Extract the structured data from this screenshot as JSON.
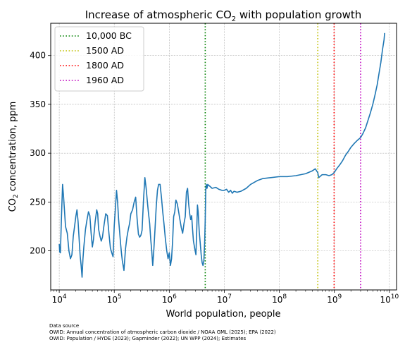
{
  "chart_data": {
    "type": "line",
    "title": {
      "main": "Increase of atmospheric CO",
      "sub": "2",
      "tail": " with population growth"
    },
    "xlabel": "World population, people",
    "ylabel": {
      "pre": "CO",
      "sub": "2",
      "post": " concentration, ppm"
    },
    "x_scale": "log",
    "xlim": [
      7000,
      13500000000
    ],
    "ylim": [
      160,
      433
    ],
    "grid": true,
    "x_ticks": [
      {
        "value": 10000,
        "base": "10",
        "exp": "4"
      },
      {
        "value": 100000,
        "base": "10",
        "exp": "5"
      },
      {
        "value": 1000000,
        "base": "10",
        "exp": "6"
      },
      {
        "value": 10000000,
        "base": "10",
        "exp": "7"
      },
      {
        "value": 100000000,
        "base": "10",
        "exp": "8"
      },
      {
        "value": 1000000000,
        "base": "10",
        "exp": "9"
      },
      {
        "value": 10000000000,
        "base": "10",
        "exp": "10"
      }
    ],
    "y_ticks": [
      200,
      250,
      300,
      350,
      400
    ],
    "legend": {
      "position": "top-left",
      "entries": [
        {
          "label": "10,000 BC",
          "color": "#008000"
        },
        {
          "label": "1500 AD",
          "color": "#bfbf00"
        },
        {
          "label": "1800 AD",
          "color": "#ff0000"
        },
        {
          "label": "1960 AD",
          "color": "#bf00bf"
        }
      ]
    },
    "vlines": [
      {
        "label": "10,000 BC",
        "x": 4500000,
        "color": "#008000"
      },
      {
        "label": "1500 AD",
        "x": 500000000,
        "color": "#bfbf00"
      },
      {
        "label": "1800 AD",
        "x": 990000000,
        "color": "#ff0000"
      },
      {
        "label": "1960 AD",
        "x": 3000000000,
        "color": "#bf00bf"
      }
    ],
    "series": [
      {
        "color": "#1f77b4",
        "points": [
          [
            10000,
            207
          ],
          [
            10200,
            199
          ],
          [
            10500,
            198
          ],
          [
            11000,
            236
          ],
          [
            11500,
            268
          ],
          [
            12000,
            255
          ],
          [
            12500,
            240
          ],
          [
            13000,
            225
          ],
          [
            14000,
            218
          ],
          [
            15000,
            200
          ],
          [
            16000,
            192
          ],
          [
            17000,
            196
          ],
          [
            18000,
            215
          ],
          [
            19000,
            225
          ],
          [
            20000,
            235
          ],
          [
            21000,
            242
          ],
          [
            22000,
            230
          ],
          [
            23000,
            212
          ],
          [
            24000,
            195
          ],
          [
            25000,
            185
          ],
          [
            26000,
            173
          ],
          [
            27000,
            192
          ],
          [
            28000,
            204
          ],
          [
            30000,
            222
          ],
          [
            32000,
            232
          ],
          [
            34000,
            240
          ],
          [
            36000,
            236
          ],
          [
            38000,
            218
          ],
          [
            40000,
            204
          ],
          [
            42000,
            212
          ],
          [
            45000,
            230
          ],
          [
            48000,
            242
          ],
          [
            50000,
            238
          ],
          [
            52000,
            222
          ],
          [
            55000,
            215
          ],
          [
            58000,
            210
          ],
          [
            61000,
            214
          ],
          [
            65000,
            226
          ],
          [
            70000,
            238
          ],
          [
            75000,
            236
          ],
          [
            80000,
            218
          ],
          [
            85000,
            203
          ],
          [
            90000,
            198
          ],
          [
            95000,
            194
          ],
          [
            100000,
            226
          ],
          [
            105000,
            244
          ],
          [
            110000,
            262
          ],
          [
            115000,
            250
          ],
          [
            120000,
            232
          ],
          [
            125000,
            220
          ],
          [
            130000,
            208
          ],
          [
            135000,
            198
          ],
          [
            140000,
            190
          ],
          [
            150000,
            180
          ],
          [
            160000,
            202
          ],
          [
            170000,
            214
          ],
          [
            180000,
            222
          ],
          [
            190000,
            228
          ],
          [
            200000,
            238
          ],
          [
            215000,
            242
          ],
          [
            230000,
            250
          ],
          [
            245000,
            255
          ],
          [
            260000,
            233
          ],
          [
            275000,
            217
          ],
          [
            290000,
            214
          ],
          [
            305000,
            216
          ],
          [
            320000,
            221
          ],
          [
            340000,
            252
          ],
          [
            360000,
            275
          ],
          [
            380000,
            264
          ],
          [
            400000,
            250
          ],
          [
            420000,
            238
          ],
          [
            440000,
            228
          ],
          [
            460000,
            212
          ],
          [
            480000,
            200
          ],
          [
            500000,
            185
          ],
          [
            520000,
            198
          ],
          [
            550000,
            222
          ],
          [
            580000,
            246
          ],
          [
            610000,
            262
          ],
          [
            640000,
            268
          ],
          [
            680000,
            268
          ],
          [
            720000,
            255
          ],
          [
            760000,
            240
          ],
          [
            800000,
            228
          ],
          [
            850000,
            212
          ],
          [
            900000,
            200
          ],
          [
            950000,
            192
          ],
          [
            1000000,
            198
          ],
          [
            1050000,
            185
          ],
          [
            1100000,
            192
          ],
          [
            1150000,
            210
          ],
          [
            1200000,
            235
          ],
          [
            1260000,
            240
          ],
          [
            1320000,
            252
          ],
          [
            1400000,
            248
          ],
          [
            1480000,
            240
          ],
          [
            1560000,
            232
          ],
          [
            1650000,
            224
          ],
          [
            1750000,
            218
          ],
          [
            1850000,
            228
          ],
          [
            1950000,
            235
          ],
          [
            2050000,
            260
          ],
          [
            2150000,
            264
          ],
          [
            2250000,
            248
          ],
          [
            2350000,
            238
          ],
          [
            2450000,
            232
          ],
          [
            2550000,
            236
          ],
          [
            2650000,
            222
          ],
          [
            2750000,
            210
          ],
          [
            2850000,
            205
          ],
          [
            2950000,
            200
          ],
          [
            3050000,
            196
          ],
          [
            3150000,
            220
          ],
          [
            3250000,
            247
          ],
          [
            3350000,
            240
          ],
          [
            3500000,
            220
          ],
          [
            3650000,
            208
          ],
          [
            3800000,
            196
          ],
          [
            3950000,
            188
          ],
          [
            4100000,
            185
          ],
          [
            4250000,
            190
          ],
          [
            4400000,
            210
          ],
          [
            4500000,
            232
          ],
          [
            4600000,
            262
          ],
          [
            4700000,
            268
          ],
          [
            4850000,
            264
          ],
          [
            5000000,
            268
          ],
          [
            5500000,
            266
          ],
          [
            6000000,
            264
          ],
          [
            7000000,
            265
          ],
          [
            8000000,
            263
          ],
          [
            9000000,
            262
          ],
          [
            10000000,
            262
          ],
          [
            11000000,
            263
          ],
          [
            12000000,
            260
          ],
          [
            13000000,
            262
          ],
          [
            14000000,
            259
          ],
          [
            15000000,
            261
          ],
          [
            17000000,
            260
          ],
          [
            20000000,
            261
          ],
          [
            25000000,
            264
          ],
          [
            30000000,
            268
          ],
          [
            40000000,
            272
          ],
          [
            50000000,
            274
          ],
          [
            70000000,
            275
          ],
          [
            100000000,
            276
          ],
          [
            140000000,
            276
          ],
          [
            200000000,
            277
          ],
          [
            300000000,
            279
          ],
          [
            400000000,
            282
          ],
          [
            450000000,
            284
          ],
          [
            500000000,
            280
          ],
          [
            520000000,
            275
          ],
          [
            600000000,
            278
          ],
          [
            700000000,
            278
          ],
          [
            800000000,
            277
          ],
          [
            900000000,
            278
          ],
          [
            990000000,
            280
          ],
          [
            1100000000,
            284
          ],
          [
            1250000000,
            288
          ],
          [
            1400000000,
            292
          ],
          [
            1600000000,
            298
          ],
          [
            1800000000,
            302
          ],
          [
            2000000000,
            306
          ],
          [
            2300000000,
            310
          ],
          [
            2600000000,
            313
          ],
          [
            3000000000,
            316
          ],
          [
            3300000000,
            320
          ],
          [
            3700000000,
            326
          ],
          [
            4000000000,
            332
          ],
          [
            4500000000,
            341
          ],
          [
            5000000000,
            350
          ],
          [
            5500000000,
            360
          ],
          [
            6000000000,
            370
          ],
          [
            6500000000,
            382
          ],
          [
            7000000000,
            393
          ],
          [
            7500000000,
            406
          ],
          [
            8000000000,
            416
          ],
          [
            8200000000,
            423
          ]
        ]
      }
    ]
  },
  "source": {
    "heading": "Data source",
    "line1": "OWID: Annual concentration of atmospheric carbon dioxide / NOAA GML (2025); EPA (2022)",
    "line2": "OWID: Population / HYDE (2023); Gapminder (2022); UN WPP (2024); Estimates"
  }
}
